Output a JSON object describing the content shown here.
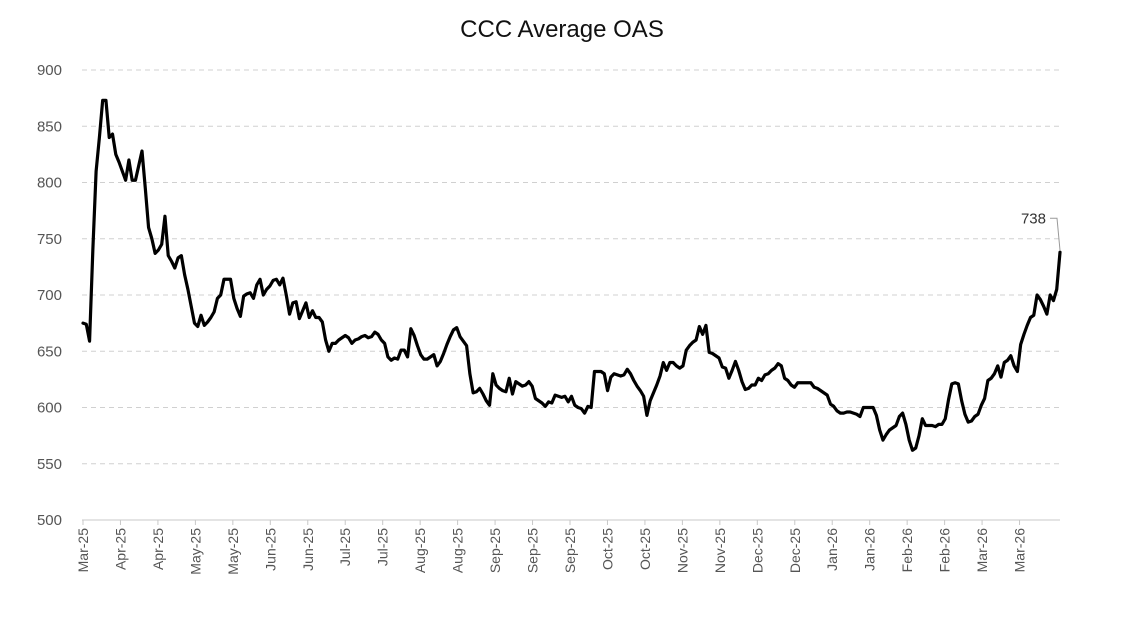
{
  "chart_data": {
    "type": "line",
    "title": "CCC Average OAS",
    "xlabel": "",
    "ylabel": "",
    "ylim": [
      500,
      900
    ],
    "yticks": [
      500,
      550,
      600,
      650,
      700,
      750,
      800,
      850,
      900
    ],
    "grid": "horizontal dashed",
    "legend": "none",
    "line_color": "#000000",
    "end_label": "738",
    "x_tick_labels": [
      "Mar-25",
      "Apr-25",
      "Apr-25",
      "May-25",
      "May-25",
      "Jun-25",
      "Jun-25",
      "Jul-25",
      "Jul-25",
      "Aug-25",
      "Aug-25",
      "Sep-25",
      "Sep-25",
      "Sep-25",
      "Oct-25",
      "Oct-25",
      "Nov-25",
      "Nov-25",
      "Dec-25",
      "Dec-25",
      "Jan-26",
      "Jan-26",
      "Feb-26",
      "Feb-26",
      "Mar-26",
      "Mar-26"
    ],
    "series": [
      {
        "values": [
          675,
          674,
          659,
          740,
          810,
          840,
          873,
          873,
          840,
          843,
          825,
          818,
          810,
          802,
          820,
          802,
          802,
          815,
          828,
          795,
          760,
          750,
          737,
          740,
          745,
          770,
          735,
          730,
          724,
          733,
          735,
          718,
          705,
          690,
          675,
          672,
          682,
          673,
          676,
          680,
          685,
          697,
          700,
          714,
          714,
          714,
          697,
          688,
          681,
          699,
          701,
          702,
          697,
          709,
          714,
          700,
          705,
          708,
          713,
          714,
          709,
          715,
          700,
          683,
          693,
          694,
          679,
          686,
          693,
          680,
          686,
          680,
          680,
          676,
          660,
          650,
          657,
          657,
          660,
          662,
          664,
          662,
          657,
          660,
          661,
          663,
          664,
          662,
          663,
          667,
          665,
          660,
          657,
          645,
          642,
          644,
          643,
          651,
          651,
          645,
          670,
          664,
          655,
          647,
          643,
          643,
          645,
          647,
          637,
          641,
          648,
          656,
          663,
          669,
          671,
          663,
          659,
          655,
          630,
          613,
          614,
          617,
          612,
          606,
          602,
          630,
          620,
          617,
          615,
          614,
          626,
          612,
          623,
          621,
          619,
          620,
          623,
          619,
          608,
          606,
          604,
          601,
          605,
          604,
          611,
          610,
          609,
          610,
          605,
          610,
          602,
          600,
          599,
          595,
          601,
          600,
          632,
          632,
          632,
          630,
          615,
          627,
          630,
          629,
          628,
          629,
          634,
          630,
          624,
          619,
          615,
          610,
          593,
          606,
          613,
          620,
          628,
          640,
          633,
          640,
          640,
          637,
          635,
          637,
          651,
          655,
          658,
          660,
          672,
          665,
          673,
          649,
          648,
          646,
          644,
          636,
          635,
          626,
          633,
          641,
          633,
          623,
          616,
          617,
          620,
          620,
          626,
          624,
          629,
          630,
          633,
          635,
          639,
          637,
          626,
          624,
          620,
          618,
          622,
          622,
          622,
          622,
          622,
          618,
          617,
          615,
          613,
          611,
          603,
          601,
          597,
          595,
          595,
          596,
          596,
          595,
          594,
          592,
          600,
          600,
          600,
          600,
          593,
          580,
          571,
          576,
          580,
          582,
          584,
          592,
          595,
          585,
          571,
          562,
          564,
          575,
          590,
          584,
          584,
          584,
          583,
          585,
          585,
          590,
          607,
          621,
          622,
          621,
          606,
          594,
          587,
          588,
          592,
          594,
          602,
          608,
          624,
          626,
          630,
          637,
          627,
          640,
          642,
          646,
          637,
          632,
          656,
          665,
          673,
          680,
          682,
          700,
          696,
          690,
          683,
          700,
          695,
          705,
          738
        ]
      }
    ]
  }
}
